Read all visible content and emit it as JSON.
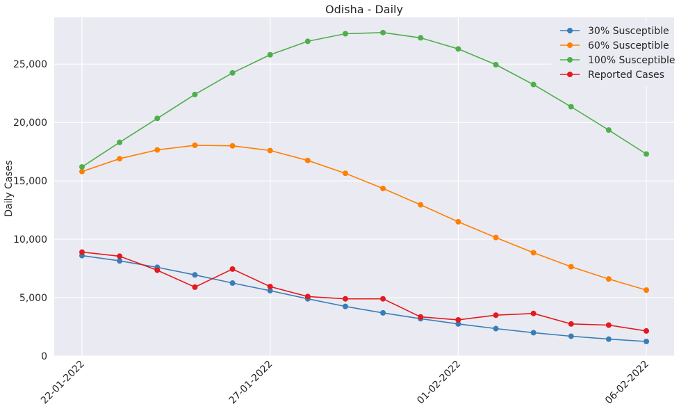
{
  "chart_data": {
    "type": "line",
    "title": "Odisha - Daily",
    "xlabel": "",
    "ylabel": "Daily Cases",
    "ylim": [
      0,
      29000
    ],
    "yticks": [
      0,
      5000,
      10000,
      15000,
      20000,
      25000
    ],
    "ytick_labels": [
      "0",
      "5,000",
      "10,000",
      "15,000",
      "20,000",
      "25,000"
    ],
    "x": [
      "22-01-2022",
      "23-01-2022",
      "24-01-2022",
      "25-01-2022",
      "26-01-2022",
      "27-01-2022",
      "28-01-2022",
      "29-01-2022",
      "30-01-2022",
      "31-01-2022",
      "01-02-2022",
      "02-02-2022",
      "03-02-2022",
      "04-02-2022",
      "05-02-2022",
      "06-02-2022"
    ],
    "xtick_labels": [
      "22-01-2022",
      "27-01-2022",
      "01-02-2022",
      "06-02-2022"
    ],
    "xtick_indices": [
      0,
      5,
      10,
      15
    ],
    "grid": true,
    "legend_position": "top-right",
    "series": [
      {
        "name": "30% Susceptible",
        "color": "#377eb8",
        "values": [
          8600,
          8150,
          7600,
          6950,
          6250,
          5600,
          4900,
          4250,
          3700,
          3200,
          2750,
          2350,
          2000,
          1700,
          1450,
          1250
        ]
      },
      {
        "name": "60% Susceptible",
        "color": "#ff7f00",
        "values": [
          15800,
          16900,
          17650,
          18050,
          18000,
          17600,
          16750,
          15650,
          14350,
          12950,
          11500,
          10150,
          8850,
          7650,
          6600,
          5650
        ]
      },
      {
        "name": "100% Susceptible",
        "color": "#4daf4a",
        "values": [
          16200,
          18300,
          20350,
          22400,
          24250,
          25800,
          26950,
          27600,
          27700,
          27250,
          26300,
          24950,
          23250,
          21350,
          19350,
          17300
        ]
      },
      {
        "name": "Reported Cases",
        "color": "#e41a1c",
        "values": [
          8900,
          8550,
          7350,
          5900,
          7450,
          5950,
          5100,
          4900,
          4900,
          3350,
          3100,
          3500,
          3650,
          2750,
          2650,
          2150
        ]
      }
    ]
  }
}
